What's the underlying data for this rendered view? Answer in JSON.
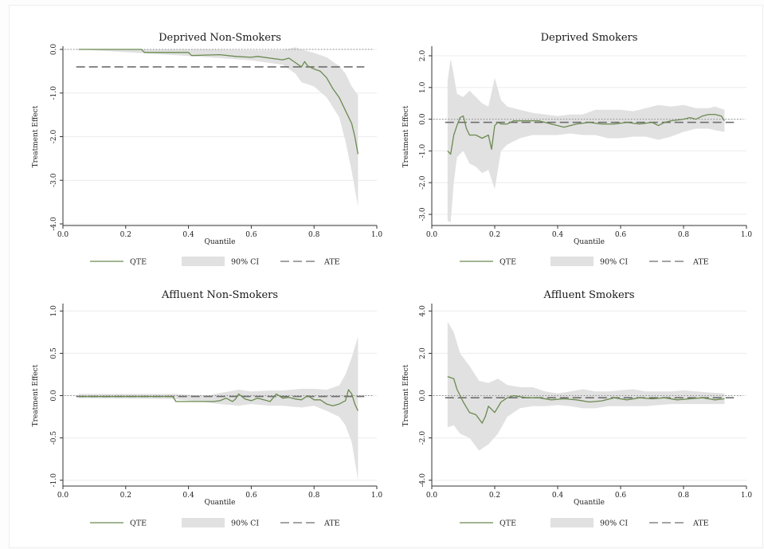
{
  "chart_data": [
    {
      "type": "line",
      "title": "Deprived Non-Smokers",
      "xlabel": "Quantile",
      "ylabel": "Treatment Effect",
      "xlim": [
        0.0,
        1.0
      ],
      "ylim": [
        -4.0,
        0.0
      ],
      "x_ticks": [
        "0.0",
        "0.2",
        "0.4",
        "0.6",
        "0.8",
        "1.0"
      ],
      "y_ticks": [
        "0.0",
        "-1.0",
        "-2.0",
        "-3.0",
        "-4.0"
      ],
      "legend": [
        "QTE",
        "90% CI",
        "ATE"
      ],
      "legend_position": "bottom",
      "grid": true,
      "ate": -0.4,
      "series": [
        {
          "name": "QTE",
          "x": [
            0.05,
            0.25,
            0.26,
            0.4,
            0.41,
            0.5,
            0.55,
            0.6,
            0.62,
            0.7,
            0.72,
            0.76,
            0.77,
            0.78,
            0.8,
            0.82,
            0.84,
            0.86,
            0.88,
            0.9,
            0.92,
            0.93,
            0.94
          ],
          "values": [
            0.0,
            0.0,
            -0.07,
            -0.07,
            -0.14,
            -0.12,
            -0.16,
            -0.18,
            -0.16,
            -0.24,
            -0.2,
            -0.4,
            -0.28,
            -0.38,
            -0.45,
            -0.5,
            -0.65,
            -0.9,
            -1.1,
            -1.4,
            -1.7,
            -2.0,
            -2.4
          ]
        },
        {
          "name": "90% CI upper",
          "x": [
            0.05,
            0.4,
            0.6,
            0.7,
            0.74,
            0.76,
            0.8,
            0.84,
            0.88,
            0.9,
            0.92,
            0.94
          ],
          "values": [
            0.0,
            0.0,
            -0.02,
            -0.02,
            0.05,
            0.0,
            -0.08,
            -0.18,
            -0.38,
            -0.55,
            -0.85,
            -1.05
          ]
        },
        {
          "name": "90% CI lower",
          "x": [
            0.05,
            0.4,
            0.6,
            0.7,
            0.74,
            0.76,
            0.8,
            0.84,
            0.88,
            0.9,
            0.92,
            0.94
          ],
          "values": [
            0.0,
            -0.15,
            -0.25,
            -0.35,
            -0.55,
            -0.75,
            -0.85,
            -1.1,
            -1.55,
            -2.1,
            -2.8,
            -3.6
          ]
        }
      ]
    },
    {
      "type": "line",
      "title": "Deprived Smokers",
      "xlabel": "Quantile",
      "ylabel": "Treatment Effect",
      "xlim": [
        0.0,
        1.0
      ],
      "ylim": [
        -3.3,
        2.2
      ],
      "x_ticks": [
        "0.0",
        "0.2",
        "0.4",
        "0.6",
        "0.8",
        "1.0"
      ],
      "y_ticks": [
        "2.0",
        "1.0",
        "0.0",
        "-1.0",
        "-2.0",
        "-3.0"
      ],
      "legend": [
        "QTE",
        "90% CI",
        "ATE"
      ],
      "legend_position": "bottom",
      "grid": true,
      "ate": -0.1,
      "series": [
        {
          "name": "QTE",
          "x": [
            0.05,
            0.06,
            0.07,
            0.08,
            0.09,
            0.1,
            0.11,
            0.12,
            0.14,
            0.16,
            0.18,
            0.19,
            0.2,
            0.21,
            0.22,
            0.24,
            0.25,
            0.26,
            0.3,
            0.34,
            0.38,
            0.42,
            0.46,
            0.5,
            0.54,
            0.58,
            0.62,
            0.66,
            0.7,
            0.72,
            0.74,
            0.76,
            0.8,
            0.82,
            0.84,
            0.86,
            0.88,
            0.9,
            0.92,
            0.93
          ],
          "values": [
            -1.0,
            -1.1,
            -0.5,
            -0.2,
            0.05,
            0.1,
            -0.3,
            -0.5,
            -0.5,
            -0.6,
            -0.5,
            -0.95,
            -0.2,
            -0.1,
            -0.15,
            -0.15,
            -0.1,
            -0.05,
            -0.05,
            -0.05,
            -0.15,
            -0.25,
            -0.15,
            -0.1,
            -0.15,
            -0.15,
            -0.1,
            -0.15,
            -0.1,
            -0.2,
            -0.1,
            -0.05,
            0.0,
            0.05,
            0.0,
            0.1,
            0.15,
            0.15,
            0.1,
            -0.05
          ]
        },
        {
          "name": "90% CI upper",
          "x": [
            0.05,
            0.06,
            0.07,
            0.08,
            0.1,
            0.12,
            0.14,
            0.16,
            0.18,
            0.2,
            0.22,
            0.24,
            0.28,
            0.32,
            0.36,
            0.4,
            0.44,
            0.48,
            0.52,
            0.56,
            0.6,
            0.64,
            0.68,
            0.72,
            0.76,
            0.8,
            0.84,
            0.88,
            0.9,
            0.93
          ],
          "values": [
            1.2,
            1.9,
            1.4,
            0.8,
            0.7,
            0.9,
            0.7,
            0.5,
            0.4,
            1.3,
            0.6,
            0.4,
            0.3,
            0.2,
            0.15,
            0.1,
            0.15,
            0.15,
            0.3,
            0.3,
            0.3,
            0.25,
            0.35,
            0.45,
            0.4,
            0.45,
            0.35,
            0.35,
            0.4,
            0.3
          ]
        },
        {
          "name": "90% CI lower",
          "x": [
            0.05,
            0.06,
            0.07,
            0.08,
            0.1,
            0.12,
            0.14,
            0.16,
            0.18,
            0.2,
            0.22,
            0.24,
            0.28,
            0.32,
            0.36,
            0.4,
            0.44,
            0.48,
            0.52,
            0.56,
            0.6,
            0.64,
            0.68,
            0.72,
            0.76,
            0.8,
            0.84,
            0.88,
            0.9,
            0.93
          ],
          "values": [
            -3.2,
            -3.25,
            -2.0,
            -1.2,
            -1.0,
            -1.4,
            -1.5,
            -1.7,
            -1.6,
            -2.2,
            -1.0,
            -0.8,
            -0.6,
            -0.5,
            -0.5,
            -0.5,
            -0.45,
            -0.5,
            -0.5,
            -0.6,
            -0.6,
            -0.55,
            -0.55,
            -0.65,
            -0.55,
            -0.4,
            -0.3,
            -0.3,
            -0.35,
            -0.4
          ]
        }
      ]
    },
    {
      "type": "line",
      "title": "Affluent Non-Smokers",
      "xlabel": "Quantile",
      "ylabel": "Treatment Effect",
      "xlim": [
        0.0,
        1.0
      ],
      "ylim": [
        -1.05,
        1.05
      ],
      "x_ticks": [
        "0.0",
        "0.2",
        "0.4",
        "0.6",
        "0.8",
        "1.0"
      ],
      "y_ticks": [
        "1.0",
        "0.5",
        "0.0",
        "-0.5",
        "-1.0"
      ],
      "legend": [
        "QTE",
        "90% CI",
        "ATE"
      ],
      "legend_position": "bottom",
      "grid": true,
      "ate": -0.01,
      "series": [
        {
          "name": "QTE",
          "x": [
            0.05,
            0.25,
            0.35,
            0.36,
            0.48,
            0.5,
            0.52,
            0.54,
            0.55,
            0.56,
            0.58,
            0.6,
            0.62,
            0.64,
            0.66,
            0.68,
            0.7,
            0.72,
            0.74,
            0.76,
            0.78,
            0.8,
            0.82,
            0.84,
            0.86,
            0.88,
            0.9,
            0.91,
            0.92,
            0.93,
            0.94
          ],
          "values": [
            -0.01,
            -0.01,
            -0.01,
            -0.07,
            -0.07,
            -0.06,
            -0.03,
            -0.07,
            -0.04,
            0.02,
            -0.04,
            -0.06,
            -0.03,
            -0.05,
            -0.07,
            0.02,
            -0.03,
            -0.02,
            -0.04,
            -0.05,
            0.0,
            -0.05,
            -0.05,
            -0.1,
            -0.12,
            -0.1,
            -0.06,
            0.07,
            0.02,
            -0.1,
            -0.18
          ]
        },
        {
          "name": "90% CI upper",
          "x": [
            0.05,
            0.35,
            0.46,
            0.5,
            0.56,
            0.6,
            0.66,
            0.7,
            0.76,
            0.8,
            0.84,
            0.88,
            0.9,
            0.92,
            0.94
          ],
          "values": [
            0.02,
            0.02,
            0.0,
            0.03,
            0.07,
            0.05,
            0.06,
            0.06,
            0.08,
            0.08,
            0.07,
            0.12,
            0.25,
            0.45,
            0.7
          ]
        },
        {
          "name": "90% CI lower",
          "x": [
            0.05,
            0.35,
            0.46,
            0.5,
            0.56,
            0.6,
            0.66,
            0.7,
            0.76,
            0.8,
            0.84,
            0.88,
            0.9,
            0.92,
            0.94
          ],
          "values": [
            -0.03,
            -0.04,
            -0.08,
            -0.1,
            -0.12,
            -0.1,
            -0.12,
            -0.12,
            -0.14,
            -0.12,
            -0.18,
            -0.25,
            -0.35,
            -0.55,
            -1.0
          ]
        }
      ]
    },
    {
      "type": "line",
      "title": "Affluent Smokers",
      "xlabel": "Quantile",
      "ylabel": "Treatment Effect",
      "xlim": [
        0.0,
        1.0
      ],
      "ylim": [
        -4.2,
        4.2
      ],
      "x_ticks": [
        "0.0",
        "0.2",
        "0.4",
        "0.6",
        "0.8",
        "1.0"
      ],
      "y_ticks": [
        "4.0",
        "2.0",
        "0.0",
        "-2.0",
        "-4.0"
      ],
      "legend": [
        "QTE",
        "90% CI",
        "ATE"
      ],
      "legend_position": "bottom",
      "grid": true,
      "ate": -0.1,
      "series": [
        {
          "name": "QTE",
          "x": [
            0.05,
            0.07,
            0.08,
            0.1,
            0.12,
            0.14,
            0.16,
            0.17,
            0.18,
            0.2,
            0.22,
            0.24,
            0.26,
            0.3,
            0.34,
            0.38,
            0.42,
            0.46,
            0.5,
            0.54,
            0.58,
            0.62,
            0.66,
            0.7,
            0.74,
            0.78,
            0.82,
            0.86,
            0.9,
            0.93
          ],
          "values": [
            0.9,
            0.8,
            0.3,
            -0.3,
            -0.8,
            -0.9,
            -1.3,
            -1.0,
            -0.5,
            -0.8,
            -0.3,
            -0.1,
            0.0,
            -0.1,
            -0.1,
            -0.2,
            -0.15,
            -0.2,
            -0.3,
            -0.25,
            -0.1,
            -0.2,
            -0.1,
            -0.15,
            -0.1,
            -0.2,
            -0.15,
            -0.1,
            -0.2,
            -0.15
          ]
        },
        {
          "name": "90% CI upper",
          "x": [
            0.05,
            0.07,
            0.09,
            0.12,
            0.15,
            0.18,
            0.21,
            0.24,
            0.28,
            0.32,
            0.36,
            0.4,
            0.44,
            0.48,
            0.52,
            0.56,
            0.6,
            0.64,
            0.68,
            0.72,
            0.76,
            0.8,
            0.84,
            0.88,
            0.93
          ],
          "values": [
            3.5,
            3.0,
            2.0,
            1.4,
            0.7,
            0.6,
            0.8,
            0.5,
            0.4,
            0.4,
            0.2,
            0.1,
            0.2,
            0.3,
            0.2,
            0.2,
            0.25,
            0.3,
            0.2,
            0.2,
            0.2,
            0.25,
            0.2,
            0.15,
            0.1
          ]
        },
        {
          "name": "90% CI lower",
          "x": [
            0.05,
            0.07,
            0.09,
            0.12,
            0.15,
            0.18,
            0.21,
            0.24,
            0.28,
            0.32,
            0.36,
            0.4,
            0.44,
            0.48,
            0.52,
            0.56,
            0.6,
            0.64,
            0.68,
            0.72,
            0.76,
            0.8,
            0.84,
            0.88,
            0.93
          ],
          "values": [
            -1.5,
            -1.4,
            -1.8,
            -2.0,
            -2.6,
            -2.3,
            -1.8,
            -1.0,
            -0.6,
            -0.5,
            -0.5,
            -0.45,
            -0.5,
            -0.6,
            -0.6,
            -0.5,
            -0.5,
            -0.5,
            -0.5,
            -0.45,
            -0.4,
            -0.4,
            -0.4,
            -0.4,
            -0.4
          ]
        }
      ]
    }
  ],
  "style": {
    "qte_color": "#6b8a50",
    "ci_color": "#e1e1e1",
    "ate_color": "#6e6e6e",
    "zero_line_color": "#888888",
    "grid_color": "#ececec"
  }
}
